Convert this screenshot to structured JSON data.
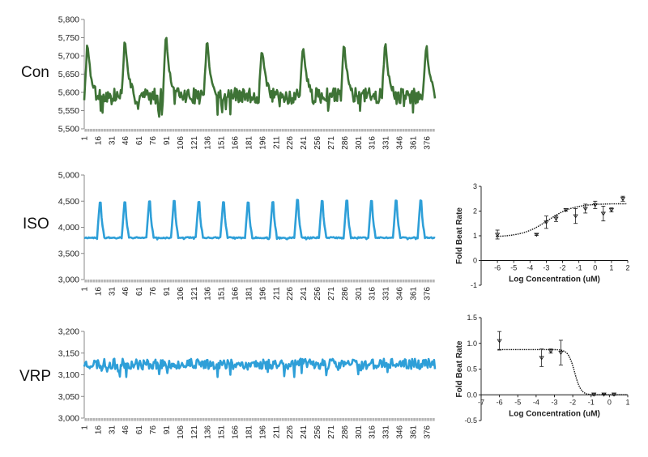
{
  "row_labels": [
    "Con",
    "ISO",
    "VRP"
  ],
  "colors": {
    "con_line": "#3e7336",
    "trace_line": "#2e9fd8",
    "axis": "#888888",
    "dose": "#111111"
  },
  "trace_x_ticks": [
    "1",
    "16",
    "31",
    "46",
    "61",
    "76",
    "91",
    "106",
    "121",
    "136",
    "151",
    "166",
    "181",
    "196",
    "211",
    "226",
    "241",
    "256",
    "271",
    "286",
    "301",
    "316",
    "331",
    "346",
    "361",
    "376"
  ],
  "chart_data": [
    {
      "name": "con-trace",
      "type": "line",
      "title": "Con",
      "color": "#3e7336",
      "ylim": [
        5500,
        5800
      ],
      "yticks": [
        "5,500",
        "5,550",
        "5,600",
        "5,650",
        "5,700",
        "5,750",
        "5,800"
      ],
      "x_range": [
        1,
        385
      ],
      "peaks": [
        5,
        46,
        91,
        136,
        196,
        241,
        286,
        331,
        376
      ],
      "peak_values": [
        5720,
        5730,
        5745,
        5730,
        5715,
        5720,
        5725,
        5725,
        5720
      ],
      "baseline": 5590,
      "noise": 22,
      "peak_width": 9,
      "seed": 7
    },
    {
      "name": "iso-trace",
      "type": "line",
      "title": "ISO",
      "color": "#2e9fd8",
      "ylim": [
        3000,
        5000
      ],
      "yticks": [
        "3,000",
        "3,500",
        "4,000",
        "4,500",
        "5,000"
      ],
      "x_range": [
        1,
        385
      ],
      "peaks": [
        19,
        46,
        73,
        100,
        127,
        154,
        181,
        208,
        235,
        262,
        289,
        316,
        343,
        370
      ],
      "peak_values": [
        4470,
        4480,
        4490,
        4500,
        4480,
        4480,
        4470,
        4480,
        4520,
        4500,
        4510,
        4500,
        4510,
        4510
      ],
      "baseline": 3800,
      "noise": 12,
      "peak_width": 4,
      "seed": 11
    },
    {
      "name": "vrp-trace",
      "type": "line",
      "title": "VRP",
      "color": "#2e9fd8",
      "ylim": [
        3000,
        3200
      ],
      "yticks": [
        "3,000",
        "3,050",
        "3,100",
        "3,150",
        "3,200"
      ],
      "x_range": [
        1,
        385
      ],
      "peaks": [],
      "peak_values": [],
      "baseline": 3125,
      "noise": 12,
      "peak_width": 0,
      "seed": 23
    },
    {
      "name": "iso-dose",
      "type": "scatter",
      "xlabel": "Log Concentration (uM)",
      "ylabel": "Fold Beat Rate",
      "xlim": [
        -7,
        2
      ],
      "ylim": [
        -1,
        3
      ],
      "xticks": [
        "-6",
        "-5",
        "-4",
        "-3",
        "-2",
        "-1",
        "0",
        "1",
        "2"
      ],
      "yticks": [
        "-1",
        "0",
        "1",
        "2",
        "3"
      ],
      "points": [
        {
          "x": -6.0,
          "y": 1.05,
          "err": 0.18
        },
        {
          "x": -3.6,
          "y": 1.05,
          "err": 0.03
        },
        {
          "x": -3.0,
          "y": 1.55,
          "err": 0.25
        },
        {
          "x": -2.4,
          "y": 1.7,
          "err": 0.12
        },
        {
          "x": -1.8,
          "y": 2.05,
          "err": 0.05
        },
        {
          "x": -1.2,
          "y": 1.8,
          "err": 0.3
        },
        {
          "x": -0.6,
          "y": 2.1,
          "err": 0.18
        },
        {
          "x": 0.0,
          "y": 2.25,
          "err": 0.15
        },
        {
          "x": 0.5,
          "y": 1.9,
          "err": 0.3
        },
        {
          "x": 1.0,
          "y": 2.05,
          "err": 0.08
        },
        {
          "x": 1.7,
          "y": 2.5,
          "err": 0.1
        }
      ],
      "fit": {
        "bottom": 0.95,
        "top": 2.3,
        "logEC50": -2.9,
        "hill": 0.55
      }
    },
    {
      "name": "vrp-dose",
      "type": "scatter",
      "xlabel": "Log Concentration (uM)",
      "ylabel": "Fold Beat Rate",
      "xlim": [
        -7,
        1
      ],
      "ylim": [
        -0.5,
        1.5
      ],
      "xticks": [
        "-7",
        "-6",
        "-5",
        "-4",
        "-3",
        "-2",
        "-1",
        "0",
        "1"
      ],
      "yticks": [
        "-0.5",
        "0.0",
        "0.5",
        "1.0",
        "1.5"
      ],
      "points": [
        {
          "x": -6.0,
          "y": 1.05,
          "err": 0.18
        },
        {
          "x": -3.7,
          "y": 0.72,
          "err": 0.17
        },
        {
          "x": -3.2,
          "y": 0.85,
          "err": 0.04
        },
        {
          "x": -2.65,
          "y": 0.82,
          "err": 0.24
        },
        {
          "x": -0.85,
          "y": 0.01,
          "err": 0.02
        },
        {
          "x": -0.3,
          "y": 0.01,
          "err": 0.01
        },
        {
          "x": 0.25,
          "y": 0.01,
          "err": 0.02
        }
      ],
      "fit": {
        "bottom": 0.0,
        "top": 0.88,
        "logEC50": -1.9,
        "hill": -2.5
      }
    }
  ]
}
